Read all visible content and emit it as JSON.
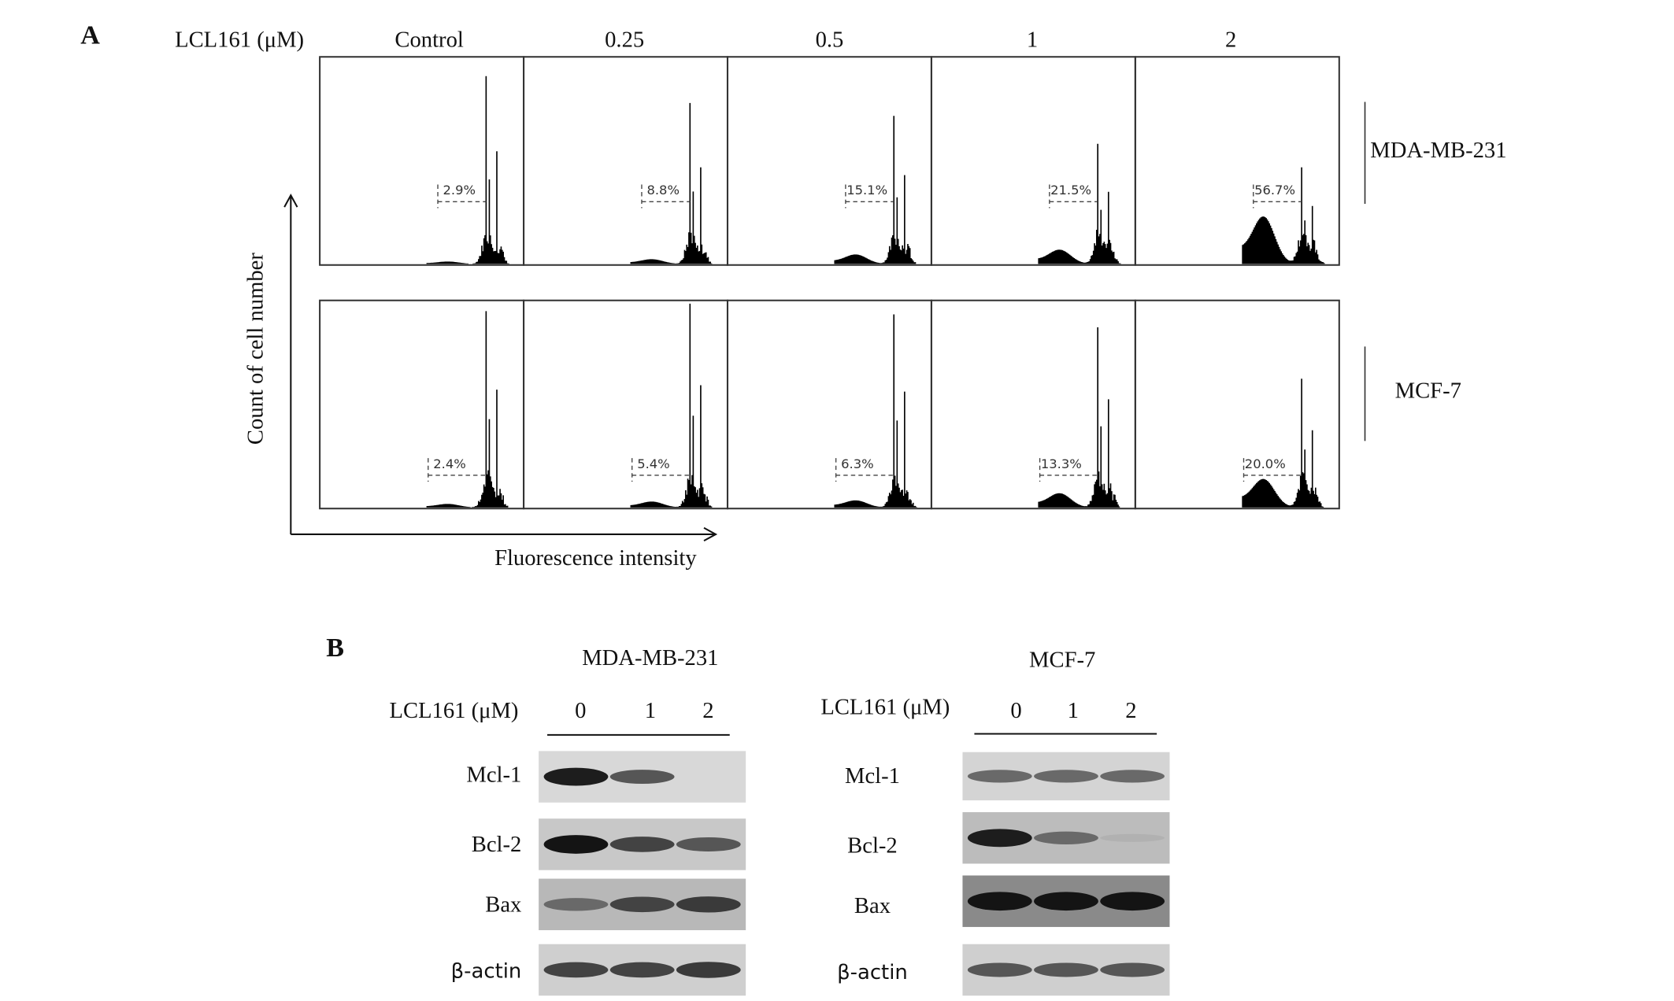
{
  "panel_a": {
    "label": "A",
    "treatment_label": "LCL161 (μM)",
    "concentrations": [
      "Control",
      "0.25",
      "0.5",
      "1",
      "2"
    ],
    "y_axis_label": "Count of cell number",
    "x_axis_label": "Fluorescence intensity",
    "rows": [
      {
        "cell_line": "MDA-MB-231",
        "percentages": [
          "2.9%",
          "8.8%",
          "15.1%",
          "21.5%",
          "56.7%"
        ]
      },
      {
        "cell_line": "MCF-7",
        "percentages": [
          "2.4%",
          "5.4%",
          "6.3%",
          "13.3%",
          "20.0%"
        ]
      }
    ]
  },
  "panel_b": {
    "label": "B",
    "blots": [
      {
        "title": "MDA-MB-231",
        "treatment_label": "LCL161 (μM)",
        "lanes": [
          "0",
          "1",
          "2"
        ],
        "proteins": [
          "Mcl-1",
          "Bcl-2",
          "Bax",
          "β-actin"
        ]
      },
      {
        "title": "MCF-7",
        "treatment_label": "LCL161 (μM)",
        "lanes": [
          "0",
          "1",
          "2"
        ],
        "proteins": [
          "Mcl-1",
          "Bcl-2",
          "Bax",
          "β-actin"
        ]
      }
    ]
  }
}
